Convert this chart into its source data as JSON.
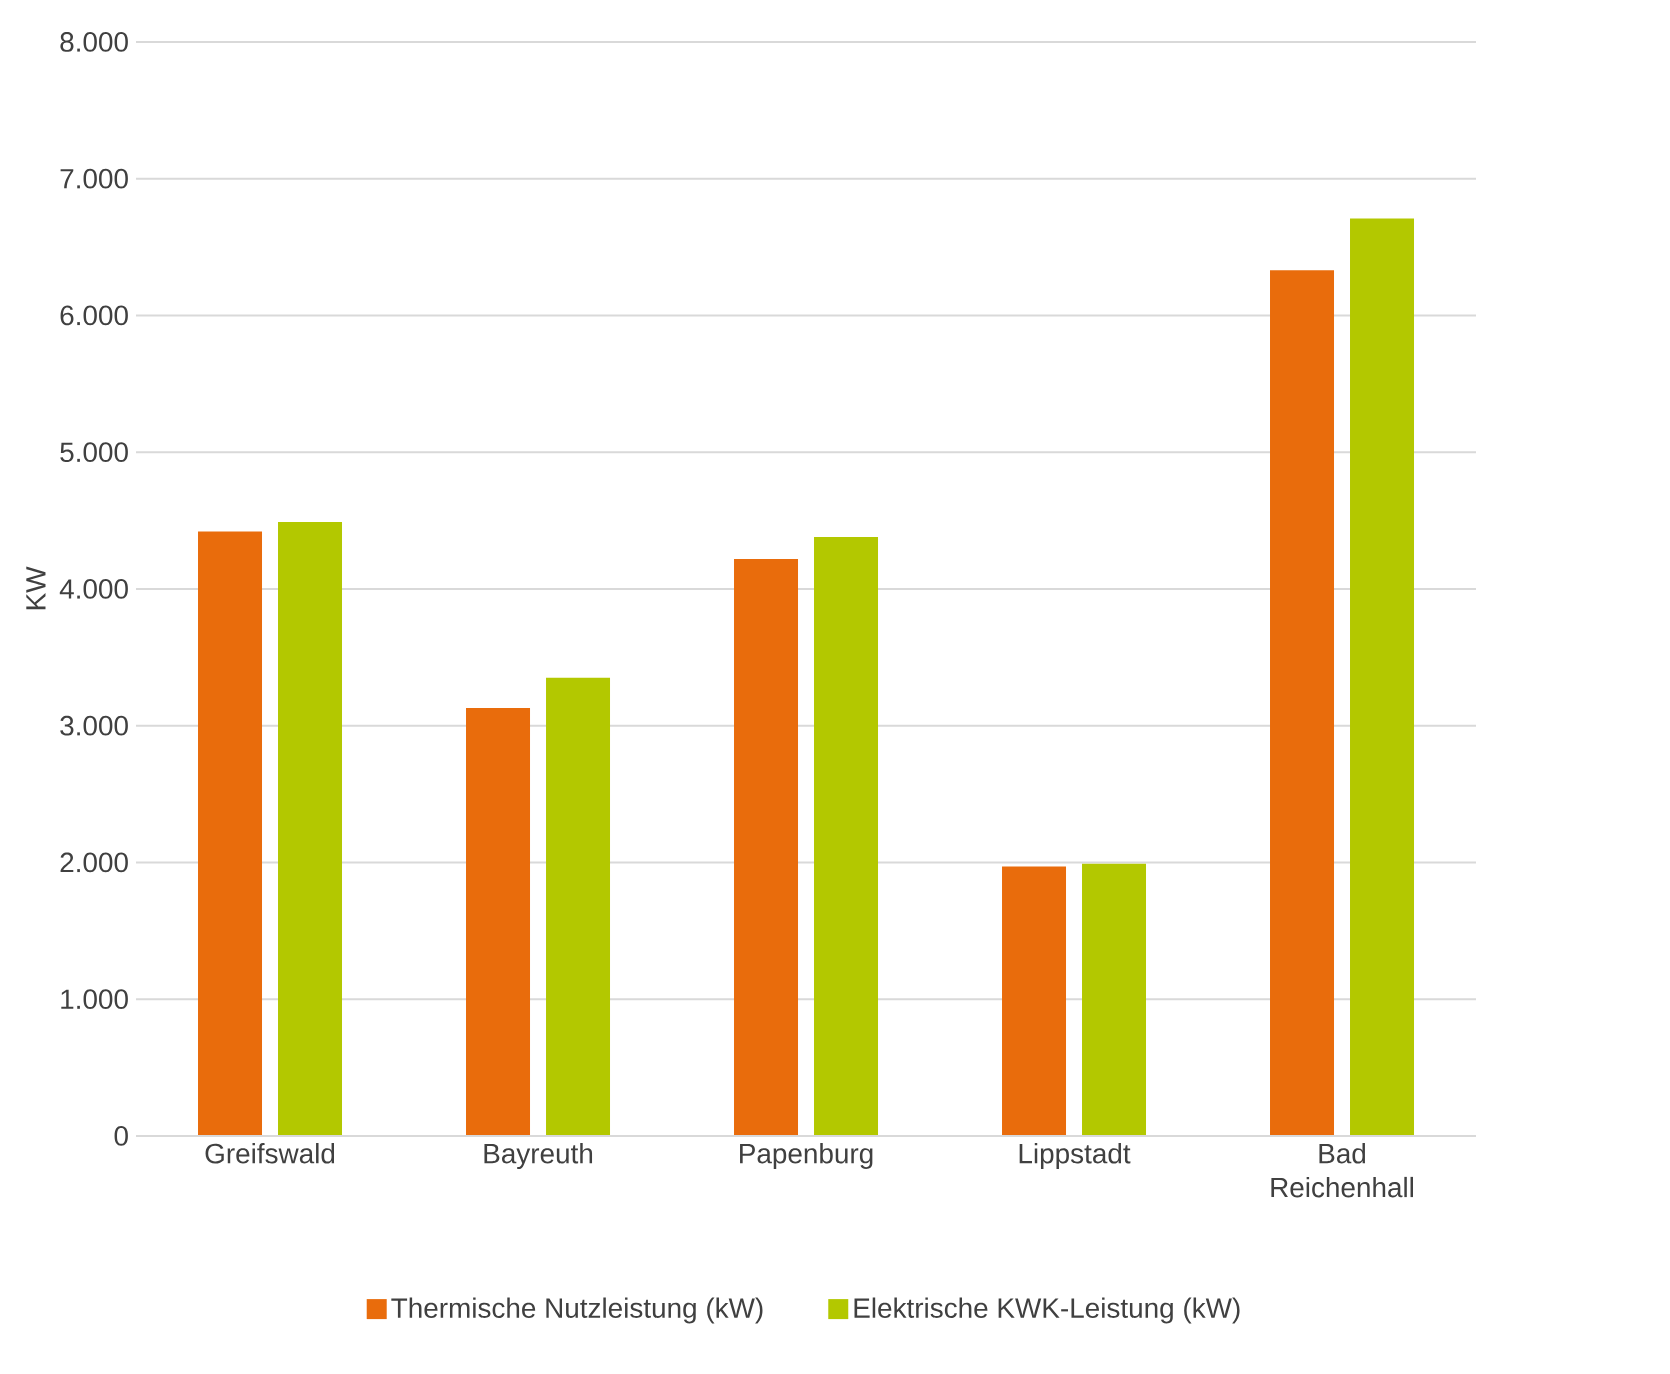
{
  "chart_data": {
    "type": "bar",
    "ylabel": "KW",
    "categories": [
      "Greifswald",
      "Bayreuth",
      "Papenburg",
      "Lippstadt",
      "Bad Reichenhall"
    ],
    "series": [
      {
        "name": "Thermische Nutzleistung (kW)",
        "color": "#e96c0c",
        "values": [
          4420,
          3130,
          4220,
          1970,
          6330
        ]
      },
      {
        "name": "Elektrische KWK-Leistung (kW)",
        "color": "#b3c800",
        "values": [
          4490,
          3350,
          4380,
          1990,
          6710
        ]
      }
    ],
    "ylim": [
      0,
      8000
    ],
    "yticks": [
      {
        "value": 0,
        "label": "0"
      },
      {
        "value": 1000,
        "label": "1.000"
      },
      {
        "value": 2000,
        "label": "2.000"
      },
      {
        "value": 3000,
        "label": "3.000"
      },
      {
        "value": 4000,
        "label": "4.000"
      },
      {
        "value": 5000,
        "label": "5.000"
      },
      {
        "value": 6000,
        "label": "6.000"
      },
      {
        "value": 7000,
        "label": "7.000"
      },
      {
        "value": 8000,
        "label": "8.000"
      }
    ],
    "grid": "y",
    "legend": "bottom"
  }
}
